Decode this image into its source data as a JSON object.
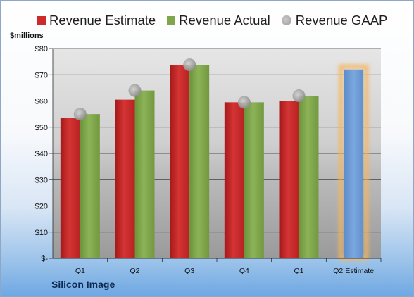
{
  "chart_data": {
    "type": "bar",
    "ylabel": "$millions",
    "ylim": [
      0,
      80
    ],
    "yticks": [
      "$-",
      "$10",
      "$20",
      "$30",
      "$40",
      "$50",
      "$60",
      "$70",
      "$80"
    ],
    "categories": [
      "Q1",
      "Q2",
      "Q3",
      "Q4",
      "Q1",
      "Q2 Estimate"
    ],
    "series": [
      {
        "name": "Revenue Estimate",
        "kind": "bar",
        "color": "#cc2b2b",
        "values": [
          53.5,
          60.5,
          73.8,
          59.5,
          60.1,
          null
        ]
      },
      {
        "name": "Revenue Actual",
        "kind": "bar",
        "color": "#7fa64b",
        "values": [
          55.0,
          64.0,
          73.8,
          59.5,
          62.0,
          72.0
        ]
      },
      {
        "name": "Revenue GAAP",
        "kind": "marker",
        "color": "#a6a6a6",
        "values": [
          55.0,
          64.0,
          73.8,
          59.5,
          62.0,
          null
        ]
      }
    ],
    "highlight": {
      "category": "Q2 Estimate",
      "bar_color": "#6c9ad3",
      "glow_color": "#f5b55f"
    },
    "grid": true,
    "legend_position": "top"
  },
  "caption": "Silicon Image"
}
